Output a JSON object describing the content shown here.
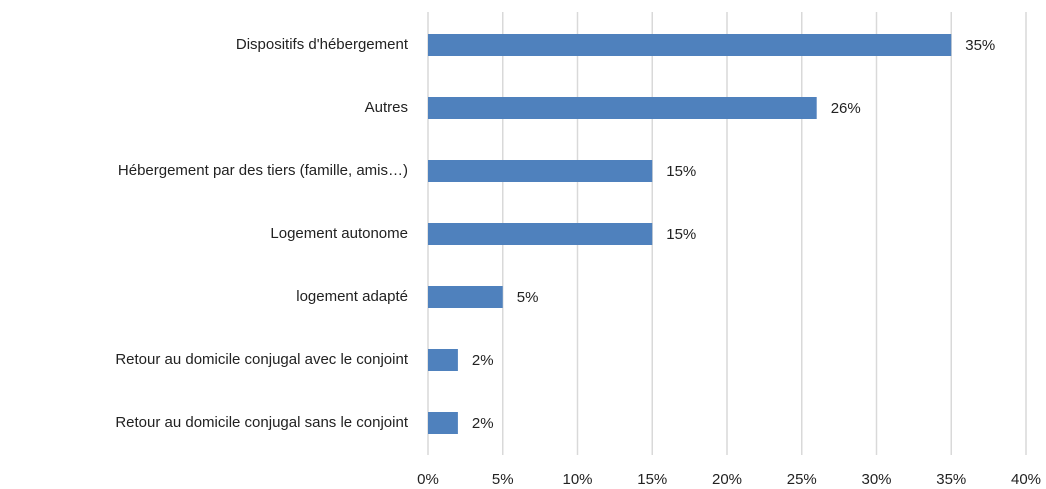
{
  "chart_data": {
    "type": "hbar",
    "categories": [
      "Dispositifs d'hébergement",
      "Autres",
      "Hébergement par des tiers (famille, amis…)",
      "Logement autonome",
      "logement adapté",
      "Retour au domicile conjugal avec le conjoint",
      "Retour au domicile conjugal sans le conjoint"
    ],
    "values": [
      35,
      26,
      15,
      15,
      5,
      2,
      2
    ],
    "value_labels": [
      "35%",
      "26%",
      "15%",
      "15%",
      "5%",
      "2%",
      "2%"
    ],
    "color": "#4f81bd",
    "xlim": [
      0,
      40
    ],
    "xticks": [
      {
        "value": 0,
        "label": "0%"
      },
      {
        "value": 5,
        "label": "5%"
      },
      {
        "value": 10,
        "label": "10%"
      },
      {
        "value": 15,
        "label": "15%"
      },
      {
        "value": 20,
        "label": "20%"
      },
      {
        "value": 25,
        "label": "25%"
      },
      {
        "value": 30,
        "label": "30%"
      },
      {
        "value": 35,
        "label": "35%"
      },
      {
        "value": 40,
        "label": "40%"
      }
    ],
    "grid": true
  }
}
